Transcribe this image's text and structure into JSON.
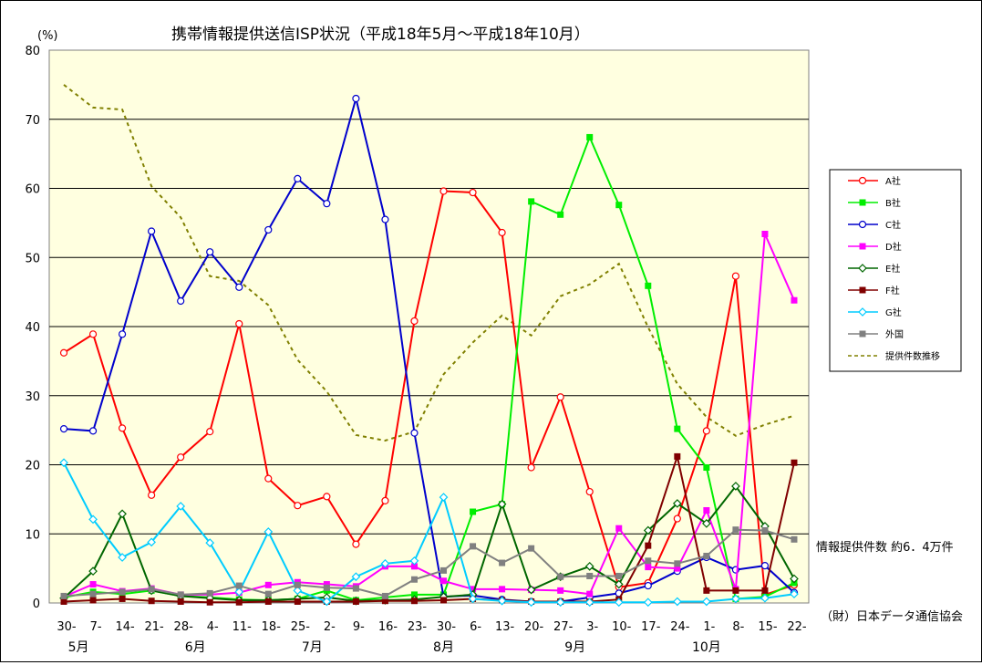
{
  "chart_data": {
    "type": "line",
    "title": "携帯情報提供送信ISP状況（平成18年5月～平成18年10月）",
    "ylabel": "(%)",
    "ylim": [
      0,
      80
    ],
    "yticks": [
      0,
      10,
      20,
      30,
      40,
      50,
      60,
      70,
      80
    ],
    "grid": true,
    "legend_position": "right",
    "categories": [
      "30-",
      "7-",
      "14-",
      "21-",
      "28-",
      "4-",
      "11-",
      "18-",
      "25-",
      "2-",
      "9-",
      "16-",
      "23-",
      "30-",
      "6-",
      "13-",
      "20-",
      "27-",
      "3-",
      "10-",
      "17-",
      "24-",
      "1-",
      "8-",
      "15-",
      "22-"
    ],
    "month_labels": [
      {
        "label": "5月",
        "index": 0.5
      },
      {
        "label": "6月",
        "index": 4.5
      },
      {
        "label": "7月",
        "index": 8.5
      },
      {
        "label": "8月",
        "index": 13
      },
      {
        "label": "9月",
        "index": 17.5
      },
      {
        "label": "10月",
        "index": 22
      }
    ],
    "series": [
      {
        "name": "A社",
        "color": "#ff0000",
        "marker": "circle",
        "values": [
          36.2,
          38.9,
          25.3,
          15.6,
          21.1,
          24.8,
          40.4,
          18.0,
          14.1,
          15.4,
          8.5,
          14.8,
          40.8,
          59.6,
          59.4,
          53.6,
          19.6,
          29.8,
          16.1,
          2.3,
          2.9,
          12.2,
          24.9,
          47.3,
          1.2,
          2.6
        ]
      },
      {
        "name": "B社",
        "color": "#00ee00",
        "marker": "square",
        "values": [
          0.8,
          1.6,
          1.3,
          1.8,
          1.0,
          0.8,
          0.5,
          0.4,
          0.6,
          1.8,
          0.4,
          0.8,
          1.2,
          1.2,
          13.2,
          14.3,
          58.1,
          56.2,
          67.4,
          57.6,
          45.9,
          25.2,
          19.6,
          0.6,
          0.9,
          2.9
        ]
      },
      {
        "name": "C社",
        "color": "#0000cc",
        "marker": "circle",
        "values": [
          25.2,
          24.9,
          38.9,
          53.8,
          43.7,
          50.8,
          45.7,
          54.0,
          61.4,
          57.8,
          73.0,
          55.5,
          24.6,
          0.9,
          1.1,
          0.5,
          0.2,
          0.2,
          0.8,
          1.4,
          2.5,
          4.6,
          6.6,
          4.8,
          5.4,
          1.5
        ]
      },
      {
        "name": "D社",
        "color": "#ff00ff",
        "marker": "square",
        "values": [
          0.9,
          2.7,
          1.7,
          2.1,
          1.2,
          1.2,
          1.5,
          2.6,
          3.0,
          2.7,
          2.4,
          5.3,
          5.3,
          3.2,
          2.0,
          2.0,
          1.9,
          1.8,
          1.3,
          10.8,
          5.2,
          5.0,
          13.4,
          2.0,
          53.4,
          43.8
        ]
      },
      {
        "name": "E社",
        "color": "#006600",
        "marker": "diamond",
        "values": [
          0.7,
          4.6,
          12.9,
          1.8,
          1.0,
          0.7,
          0.4,
          0.4,
          0.6,
          0.8,
          0.3,
          0.4,
          0.5,
          0.9,
          1.2,
          14.3,
          1.9,
          3.8,
          5.3,
          2.7,
          10.5,
          14.4,
          11.5,
          16.9,
          11.1,
          3.5
        ]
      },
      {
        "name": "F社",
        "color": "#800000",
        "marker": "square",
        "values": [
          0.2,
          0.4,
          0.6,
          0.3,
          0.2,
          0.1,
          0.1,
          0.2,
          0.2,
          0.2,
          0.2,
          0.3,
          0.3,
          0.4,
          0.6,
          0.4,
          0.2,
          0.2,
          0.2,
          0.5,
          8.3,
          21.2,
          1.8,
          1.8,
          1.8,
          20.3
        ]
      },
      {
        "name": "G社",
        "color": "#00ccff",
        "marker": "diamond",
        "values": [
          20.3,
          12.1,
          6.6,
          8.8,
          14.0,
          8.7,
          1.6,
          10.3,
          1.8,
          0.2,
          3.8,
          5.7,
          6.1,
          15.3,
          0.6,
          0.3,
          0.1,
          0.1,
          0.1,
          0.1,
          0.1,
          0.2,
          0.2,
          0.6,
          0.7,
          1.3
        ]
      },
      {
        "name": "外国",
        "color": "#808080",
        "marker": "square",
        "values": [
          1.0,
          1.3,
          1.6,
          2.0,
          1.2,
          1.4,
          2.5,
          1.3,
          2.6,
          2.2,
          2.1,
          1.0,
          3.4,
          4.7,
          8.2,
          5.8,
          7.9,
          3.8,
          3.9,
          3.9,
          6.1,
          5.7,
          6.8,
          10.6,
          10.5,
          9.2
        ]
      },
      {
        "name": "提供件数推移",
        "color": "#808000",
        "marker": "none",
        "dashed": true,
        "values": [
          75.0,
          71.7,
          71.4,
          60.3,
          55.8,
          47.3,
          46.6,
          43.1,
          35.2,
          30.6,
          24.3,
          23.5,
          24.8,
          33.1,
          37.7,
          41.6,
          38.7,
          44.4,
          46.1,
          49.1,
          39.9,
          31.7,
          26.9,
          24.2,
          25.8,
          27.1
        ]
      }
    ],
    "annotations": [
      "情報提供件数  約6．4万件",
      "（財）日本データ通信協会"
    ]
  }
}
